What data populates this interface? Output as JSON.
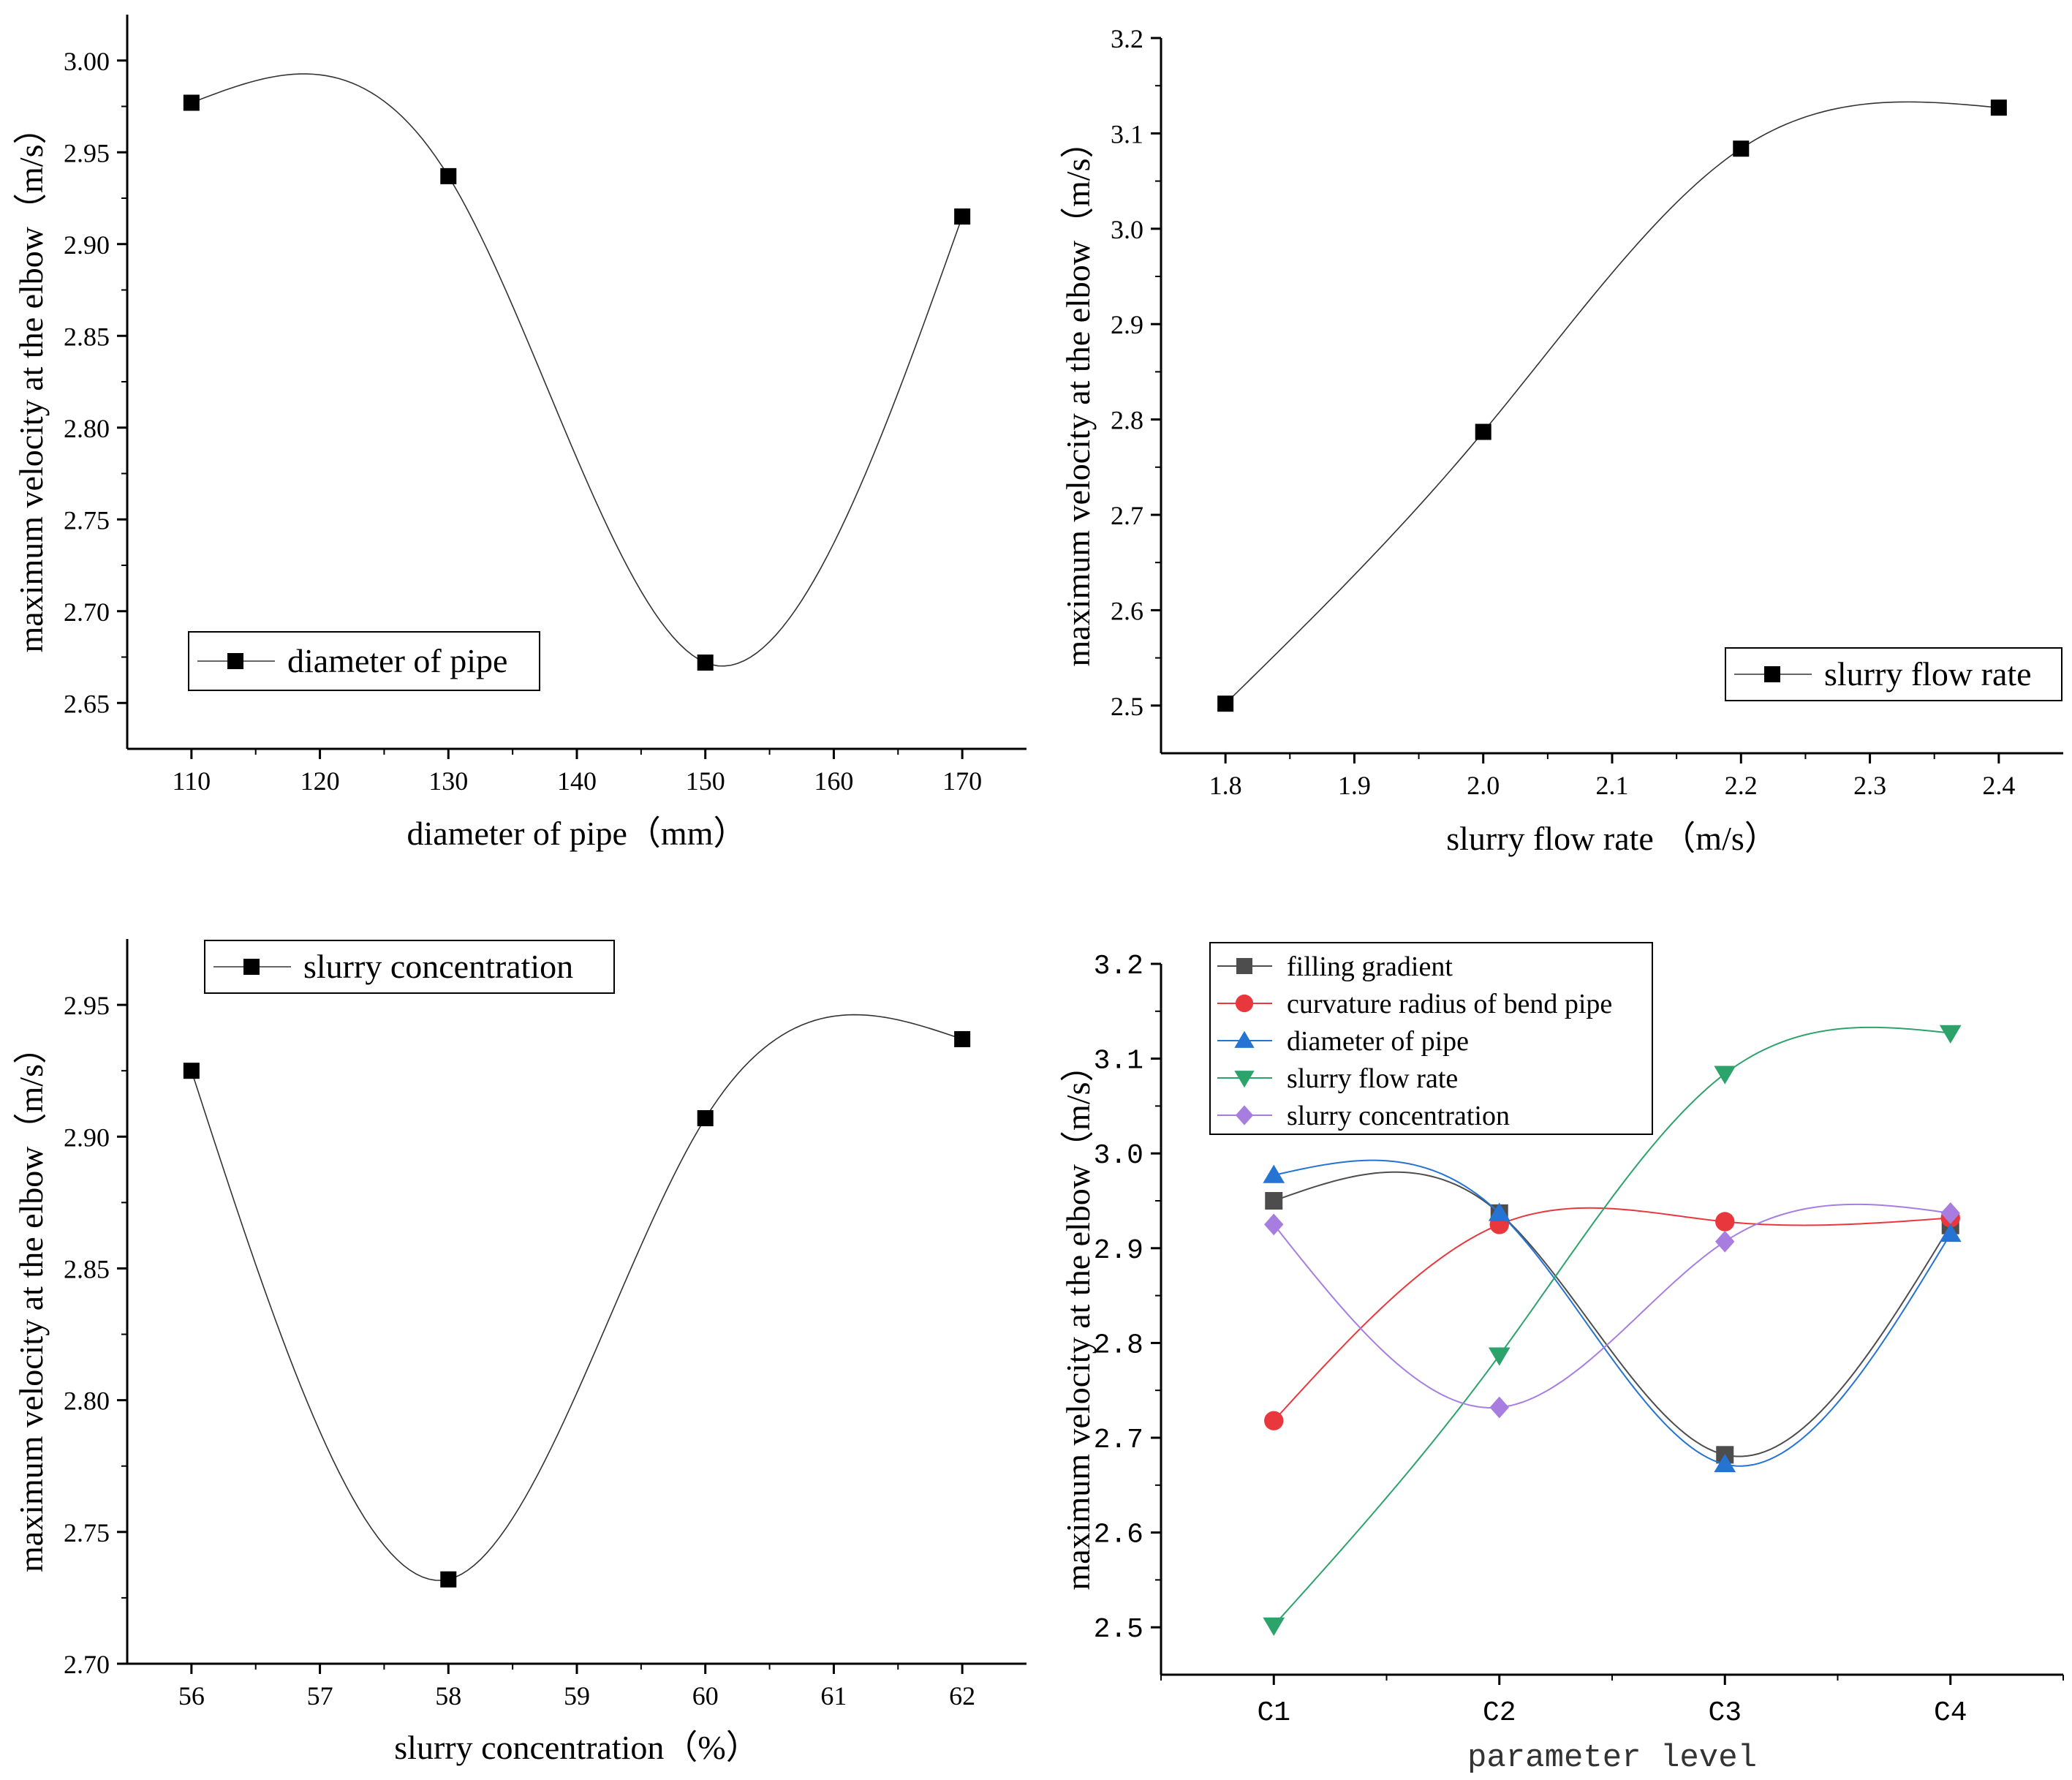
{
  "chart_data": [
    {
      "type": "line",
      "x": [
        110,
        130,
        150,
        170
      ],
      "y": [
        2.977,
        2.937,
        2.672,
        2.915
      ],
      "xlim": [
        105,
        175
      ],
      "ylim": [
        2.625,
        3.025
      ],
      "xticks": [
        "110",
        "120",
        "130",
        "140",
        "150",
        "160",
        "170"
      ],
      "yticks": [
        "2.65",
        "2.70",
        "2.75",
        "2.80",
        "2.85",
        "2.90",
        "2.95",
        "3.00"
      ],
      "xlabel": "diameter of pipe（mm）",
      "ylabel": "maximum velocity at the elbow（m/s）",
      "legend": [
        "diameter of pipe"
      ],
      "legend_position": "bottom-left",
      "color": "#000000"
    },
    {
      "type": "line",
      "x": [
        1.8,
        2.0,
        2.2,
        2.4
      ],
      "y": [
        2.502,
        2.787,
        3.084,
        3.127
      ],
      "xlim": [
        1.75,
        2.45
      ],
      "ylim": [
        2.45,
        3.2
      ],
      "xticks": [
        "1.8",
        "1.9",
        "2.0",
        "2.1",
        "2.2",
        "2.3",
        "2.4"
      ],
      "yticks": [
        "2.5",
        "2.6",
        "2.7",
        "2.8",
        "2.9",
        "3.0",
        "3.1",
        "3.2"
      ],
      "xlabel": "slurry flow rate （m/s）",
      "ylabel": "maximum velocity at the elbow（m/s）",
      "legend": [
        "slurry flow rate"
      ],
      "legend_position": "bottom-right",
      "color": "#000000"
    },
    {
      "type": "line",
      "x": [
        56,
        58,
        60,
        62
      ],
      "y": [
        2.925,
        2.732,
        2.907,
        2.937
      ],
      "xlim": [
        55.5,
        62.5
      ],
      "ylim": [
        2.7,
        2.975
      ],
      "xticks": [
        "56",
        "57",
        "58",
        "59",
        "60",
        "61",
        "62"
      ],
      "yticks": [
        "2.70",
        "2.75",
        "2.80",
        "2.85",
        "2.90",
        "2.95"
      ],
      "xlabel": "slurry concentration（%）",
      "ylabel": "maximum velocity at the elbow（m/s）",
      "legend": [
        "slurry concentration"
      ],
      "legend_position": "top-left",
      "color": "#000000"
    },
    {
      "type": "line",
      "categories": [
        "C1",
        "C2",
        "C3",
        "C4"
      ],
      "xlim": [
        0.5,
        4.5
      ],
      "ylim": [
        2.45,
        3.2
      ],
      "yticks": [
        "2.5",
        "2.6",
        "2.7",
        "2.8",
        "2.9",
        "3.0",
        "3.1",
        "3.2"
      ],
      "xlabel": "parameter level",
      "ylabel": "maximum velocity at the elbow（m/s）",
      "legend_position": "top-left",
      "series": [
        {
          "name": "filling gradient",
          "values": [
            2.95,
            2.937,
            2.682,
            2.924
          ],
          "color": "#4d4d4d",
          "marker": "square"
        },
        {
          "name": "curvature radius of bend pipe",
          "values": [
            2.718,
            2.925,
            2.928,
            2.932
          ],
          "color": "#e8383d",
          "marker": "circle"
        },
        {
          "name": "diameter of pipe",
          "values": [
            2.977,
            2.937,
            2.672,
            2.915
          ],
          "color": "#2573d3",
          "marker": "triangle-up"
        },
        {
          "name": "slurry flow rate",
          "values": [
            2.502,
            2.787,
            3.084,
            3.127
          ],
          "color": "#2ca36b",
          "marker": "triangle-down"
        },
        {
          "name": "slurry concentration",
          "values": [
            2.925,
            2.732,
            2.907,
            2.937
          ],
          "color": "#a77ee0",
          "marker": "diamond"
        }
      ]
    }
  ]
}
